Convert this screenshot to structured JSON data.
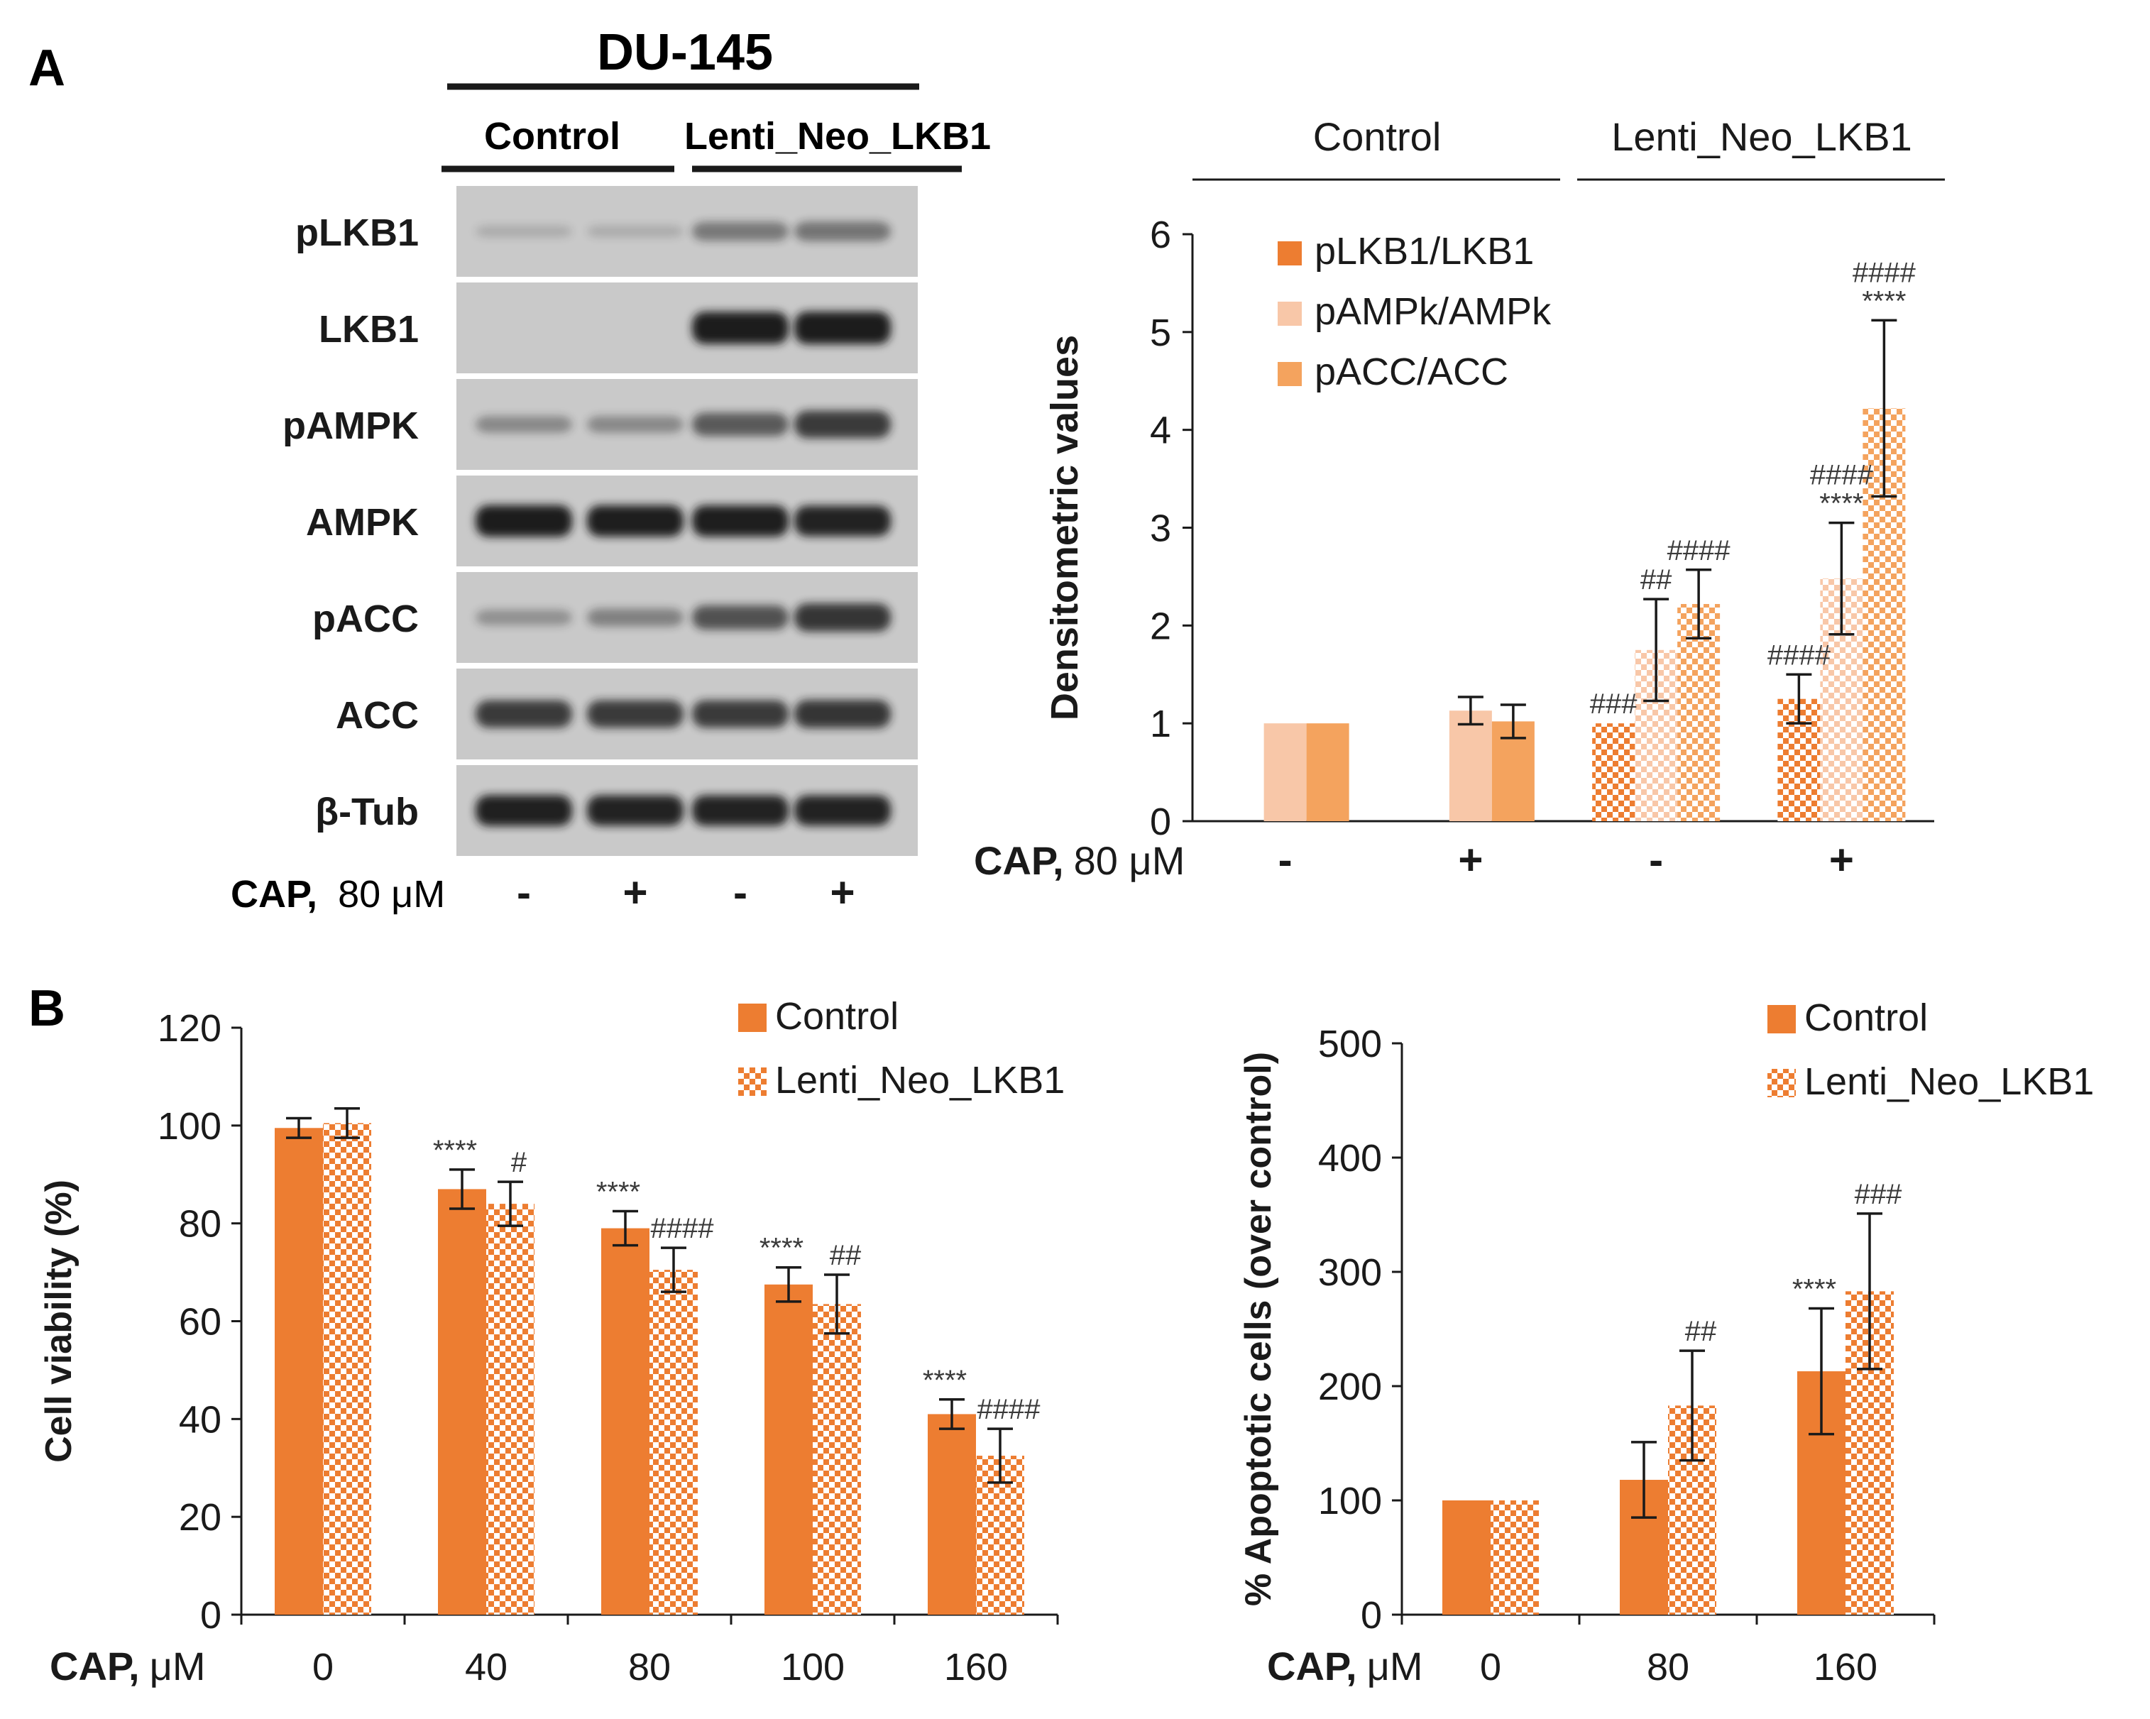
{
  "colors": {
    "orange": "#ED7D31",
    "orange_mid": "#F4A35E",
    "peach": "#F8C7A8",
    "blot_bg": "#c9c9c9",
    "band": "#1a1a1a",
    "text": "#1a1a1a"
  },
  "panel_a": {
    "label": "A",
    "blot": {
      "cell_line": "DU-145",
      "groups": [
        "Control",
        "Lenti_Neo_LKB1"
      ],
      "rows": [
        "pLKB1",
        "LKB1",
        "pAMPK",
        "AMPK",
        "pACC",
        "ACC",
        "β-Tub"
      ],
      "cap_bold": "CAP,",
      "cap_dose": "80 μM",
      "lanes": [
        "-",
        "+",
        "-",
        "+"
      ],
      "band_intensity": [
        [
          0.02,
          0.02,
          0.35,
          0.38
        ],
        [
          0.0,
          0.0,
          0.98,
          1.0
        ],
        [
          0.25,
          0.25,
          0.55,
          0.75
        ],
        [
          0.95,
          0.93,
          0.93,
          0.9
        ],
        [
          0.2,
          0.3,
          0.6,
          0.78
        ],
        [
          0.75,
          0.75,
          0.75,
          0.78
        ],
        [
          0.92,
          0.9,
          0.9,
          0.9
        ]
      ]
    },
    "bar_chart": {
      "type": "bar",
      "groups": [
        "Control",
        "Lenti_Neo_LKB1"
      ],
      "ylabel": "Densitometric values",
      "ylim": [
        0,
        6
      ],
      "yticks": [
        "0",
        "1",
        "2",
        "3",
        "4",
        "5",
        "6"
      ],
      "cap_bold": "CAP,",
      "cap_dose": "80 μM",
      "categories": [
        "-",
        "+",
        "-",
        "+"
      ],
      "legend": [
        "pLKB1/LKB1",
        "pAMPk/AMPk",
        "pACC/ACC"
      ],
      "series": [
        {
          "name": "pLKB1/LKB1",
          "values": [
            null,
            null,
            1.0,
            1.25
          ],
          "errors": [
            0,
            0,
            0,
            0.25
          ],
          "color": "#ED7D31"
        },
        {
          "name": "pAMPk/AMPk",
          "values": [
            1.0,
            1.13,
            1.75,
            2.48
          ],
          "errors": [
            0,
            0.14,
            0.52,
            0.57
          ],
          "color": "#F8C7A8"
        },
        {
          "name": "pACC/ACC",
          "values": [
            1.0,
            1.02,
            2.22,
            4.22
          ],
          "errors": [
            0,
            0.17,
            0.35,
            0.9
          ],
          "color": "#F4A35E"
        }
      ],
      "annotations": [
        {
          "cat": 2,
          "series": 0,
          "lines": [
            "###"
          ]
        },
        {
          "cat": 2,
          "series": 1,
          "lines": [
            "##"
          ]
        },
        {
          "cat": 2,
          "series": 2,
          "lines": [
            "####"
          ]
        },
        {
          "cat": 3,
          "series": 0,
          "lines": [
            "####"
          ]
        },
        {
          "cat": 3,
          "series": 1,
          "lines": [
            "####",
            "****"
          ]
        },
        {
          "cat": 3,
          "series": 2,
          "lines": [
            "####",
            "****"
          ]
        }
      ]
    }
  },
  "panel_b": {
    "label": "B",
    "viability": {
      "type": "bar",
      "ylabel": "Cell viability (%)",
      "ylim": [
        0,
        120
      ],
      "yticks": [
        "0",
        "20",
        "40",
        "60",
        "80",
        "100",
        "120"
      ],
      "cap_bold": "CAP,",
      "cap_dose": "μM",
      "categories": [
        "0",
        "40",
        "80",
        "100",
        "160"
      ],
      "legend": [
        "Control",
        "Lenti_Neo_LKB1"
      ],
      "series": [
        {
          "name": "Control",
          "values": [
            99.5,
            87,
            79,
            67.5,
            41
          ],
          "errors": [
            2,
            4,
            3.5,
            3.5,
            3
          ]
        },
        {
          "name": "Lenti_Neo_LKB1",
          "values": [
            100.5,
            84,
            70.5,
            63.5,
            32.5
          ],
          "errors": [
            3,
            4.5,
            4.5,
            6,
            5.5
          ]
        }
      ],
      "annotations": [
        {
          "cat": 1,
          "series": 0,
          "text": "****"
        },
        {
          "cat": 1,
          "series": 1,
          "text": "#"
        },
        {
          "cat": 2,
          "series": 0,
          "text": "****"
        },
        {
          "cat": 2,
          "series": 1,
          "text": "####"
        },
        {
          "cat": 3,
          "series": 0,
          "text": "****"
        },
        {
          "cat": 3,
          "series": 1,
          "text": "##"
        },
        {
          "cat": 4,
          "series": 0,
          "text": "****"
        },
        {
          "cat": 4,
          "series": 1,
          "text": "####"
        }
      ]
    },
    "apoptosis": {
      "type": "bar",
      "ylabel": "% Apoptotic cells (over control)",
      "ylim": [
        0,
        500
      ],
      "yticks": [
        "0",
        "100",
        "200",
        "300",
        "400",
        "500"
      ],
      "cap_bold": "CAP,",
      "cap_dose": "μM",
      "categories": [
        "0",
        "80",
        "160"
      ],
      "legend": [
        "Control",
        "Lenti_Neo_LKB1"
      ],
      "series": [
        {
          "name": "Control",
          "values": [
            100,
            118,
            213
          ],
          "errors": [
            0,
            33,
            55
          ]
        },
        {
          "name": "Lenti_Neo_LKB1",
          "values": [
            100,
            183,
            283
          ],
          "errors": [
            0,
            48,
            68
          ]
        }
      ],
      "annotations": [
        {
          "cat": 1,
          "series": 1,
          "text": "##"
        },
        {
          "cat": 2,
          "series": 0,
          "text": "****"
        },
        {
          "cat": 2,
          "series": 1,
          "text": "###"
        }
      ]
    }
  }
}
